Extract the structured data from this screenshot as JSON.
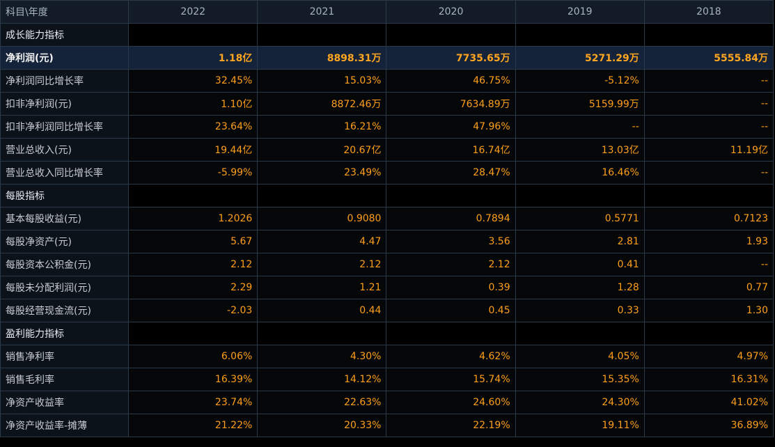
{
  "header": {
    "corner_label": "科目\\年度",
    "years": [
      "2022",
      "2021",
      "2020",
      "2019",
      "2018"
    ]
  },
  "rows": [
    {
      "type": "section",
      "label": "成长能力指标"
    },
    {
      "type": "highlight",
      "label": "净利润(元)",
      "values": [
        "1.18亿",
        "8898.31万",
        "7735.65万",
        "5271.29万",
        "5555.84万"
      ]
    },
    {
      "type": "data",
      "label": "净利润同比增长率",
      "values": [
        "32.45%",
        "15.03%",
        "46.75%",
        "-5.12%",
        "--"
      ]
    },
    {
      "type": "data",
      "label": "扣非净利润(元)",
      "values": [
        "1.10亿",
        "8872.46万",
        "7634.89万",
        "5159.99万",
        "--"
      ]
    },
    {
      "type": "data",
      "label": "扣非净利润同比增长率",
      "values": [
        "23.64%",
        "16.21%",
        "47.96%",
        "--",
        "--"
      ]
    },
    {
      "type": "data",
      "label": "营业总收入(元)",
      "values": [
        "19.44亿",
        "20.67亿",
        "16.74亿",
        "13.03亿",
        "11.19亿"
      ]
    },
    {
      "type": "data",
      "label": "营业总收入同比增长率",
      "values": [
        "-5.99%",
        "23.49%",
        "28.47%",
        "16.46%",
        "--"
      ]
    },
    {
      "type": "section",
      "label": "每股指标"
    },
    {
      "type": "data",
      "label": "基本每股收益(元)",
      "values": [
        "1.2026",
        "0.9080",
        "0.7894",
        "0.5771",
        "0.7123"
      ]
    },
    {
      "type": "data",
      "label": "每股净资产(元)",
      "values": [
        "5.67",
        "4.47",
        "3.56",
        "2.81",
        "1.93"
      ]
    },
    {
      "type": "data",
      "label": "每股资本公积金(元)",
      "values": [
        "2.12",
        "2.12",
        "2.12",
        "0.41",
        "--"
      ]
    },
    {
      "type": "data",
      "label": "每股未分配利润(元)",
      "values": [
        "2.29",
        "1.21",
        "0.39",
        "1.28",
        "0.77"
      ]
    },
    {
      "type": "data",
      "label": "每股经营现金流(元)",
      "values": [
        "-2.03",
        "0.44",
        "0.45",
        "0.33",
        "1.30"
      ]
    },
    {
      "type": "section",
      "label": "盈利能力指标"
    },
    {
      "type": "data",
      "label": "销售净利率",
      "values": [
        "6.06%",
        "4.30%",
        "4.62%",
        "4.05%",
        "4.97%"
      ]
    },
    {
      "type": "data",
      "label": "销售毛利率",
      "values": [
        "16.39%",
        "14.12%",
        "15.74%",
        "15.35%",
        "16.31%"
      ]
    },
    {
      "type": "data",
      "label": "净资产收益率",
      "values": [
        "23.74%",
        "22.63%",
        "24.60%",
        "24.30%",
        "41.02%"
      ]
    },
    {
      "type": "data",
      "label": "净资产收益率-摊薄",
      "values": [
        "21.22%",
        "20.33%",
        "22.19%",
        "19.11%",
        "36.89%"
      ]
    }
  ],
  "colors": {
    "value_text": "#ff9f1a",
    "highlight_row_bg": "#142339",
    "grid_line": "#2b3a4a"
  }
}
